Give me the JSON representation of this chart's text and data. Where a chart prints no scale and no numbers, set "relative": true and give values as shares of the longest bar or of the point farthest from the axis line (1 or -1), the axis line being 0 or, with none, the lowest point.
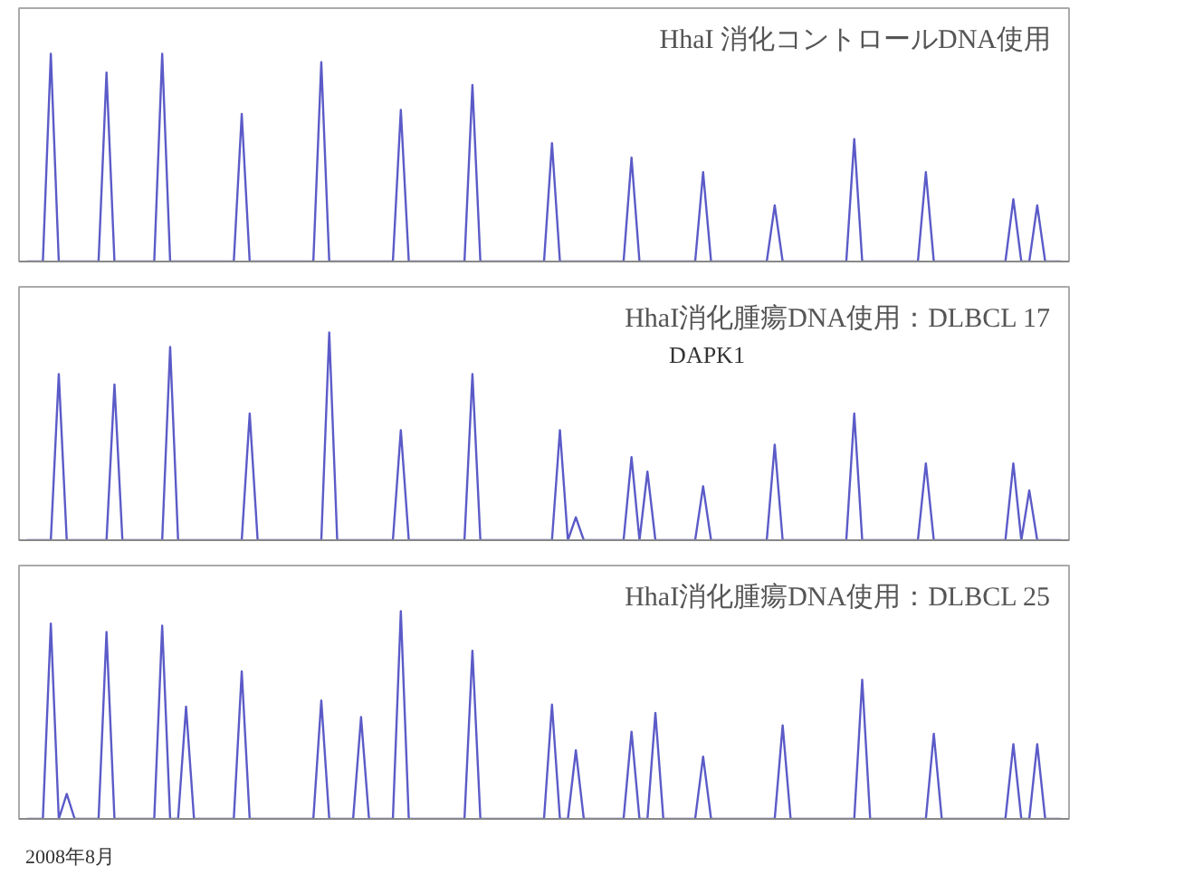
{
  "chart_data": [
    {
      "type": "line",
      "relative": true,
      "title": "HhaI 消化コントロールDNA使用",
      "categories": [
        null,
        null,
        null,
        null,
        null,
        null,
        null,
        null,
        null,
        null,
        null,
        null,
        null,
        null,
        null,
        null,
        null,
        null,
        null,
        null,
        null,
        null,
        null,
        null,
        null,
        null,
        null,
        null,
        null,
        null,
        null,
        null,
        null,
        null,
        null,
        null,
        null,
        null,
        null,
        null,
        null,
        null,
        null,
        null,
        null,
        null,
        null,
        null,
        null,
        null,
        null,
        null,
        null,
        null,
        null,
        null,
        null,
        null,
        null,
        null,
        null,
        null,
        null,
        null,
        null,
        null,
        null,
        null,
        null,
        null,
        null,
        null,
        null,
        null,
        null,
        null,
        null,
        null,
        null,
        null,
        null,
        null,
        null,
        null,
        null,
        null,
        null,
        null,
        null,
        null,
        null,
        null,
        null,
        null,
        null,
        null,
        null,
        null,
        null,
        null,
        null,
        null,
        null,
        null,
        null,
        null,
        null,
        null,
        null,
        null,
        null,
        null,
        null,
        null,
        null,
        null,
        null,
        null,
        null,
        null,
        null,
        null,
        null,
        null,
        null,
        null,
        null,
        null,
        null,
        null,
        null
      ],
      "series": [
        {
          "color": "#5b5bc8",
          "values": [
            0,
            0,
            0,
            1.0,
            0,
            0,
            0,
            0,
            0,
            0,
            0.91,
            0,
            0,
            0,
            0,
            0,
            0,
            1.0,
            0,
            0,
            0,
            0,
            0,
            0,
            0,
            0,
            0,
            0.71,
            0,
            0,
            0,
            0,
            0,
            0,
            0,
            0,
            0,
            0.96,
            0,
            0,
            0,
            0,
            0,
            0,
            0,
            0,
            0,
            0.73,
            0,
            0,
            0,
            0,
            0,
            0,
            0,
            0,
            0.85,
            0,
            0,
            0,
            0,
            0,
            0,
            0,
            0,
            0,
            0.57,
            0,
            0,
            0,
            0,
            0,
            0,
            0,
            0,
            0,
            0.5,
            0,
            0,
            0,
            0,
            0,
            0,
            0,
            0,
            0.43,
            0,
            0,
            0,
            0,
            0,
            0,
            0,
            0,
            0.27,
            0,
            0,
            0,
            0,
            0,
            0,
            0,
            0,
            0,
            0.59,
            0,
            0,
            0,
            0,
            0,
            0,
            0,
            0,
            0.43,
            0,
            0,
            0,
            0,
            0,
            0,
            0,
            0,
            0,
            0,
            0.3,
            0,
            0,
            0.27,
            0,
            0,
            0
          ]
        }
      ]
    },
    {
      "type": "line",
      "relative": true,
      "title": "HhaI消化腫瘍DNA使用：DLBCL 17",
      "annotations": [
        "DAPK1"
      ],
      "categories": [
        null,
        null,
        null,
        null,
        null,
        null,
        null,
        null,
        null,
        null,
        null,
        null,
        null,
        null,
        null,
        null,
        null,
        null,
        null,
        null,
        null,
        null,
        null,
        null,
        null,
        null,
        null,
        null,
        null,
        null,
        null,
        null,
        null,
        null,
        null,
        null,
        null,
        null,
        null,
        null,
        null,
        null,
        null,
        null,
        null,
        null,
        null,
        null,
        null,
        null,
        null,
        null,
        null,
        null,
        null,
        null,
        null,
        null,
        null,
        null,
        null,
        null,
        null,
        null,
        null,
        null,
        null,
        null,
        null,
        null,
        null,
        null,
        null,
        null,
        null,
        null,
        null,
        null,
        null,
        null,
        null,
        null,
        null,
        null,
        null,
        null,
        null,
        null,
        null,
        null,
        null,
        null,
        null,
        null,
        null,
        null,
        null,
        null,
        null,
        null,
        null,
        null,
        null,
        null,
        null,
        null,
        null,
        null,
        null,
        null,
        null,
        null,
        null,
        null,
        null,
        null,
        null,
        null,
        null,
        null,
        null,
        null,
        null,
        null,
        null,
        null,
        null,
        null,
        null,
        null,
        null
      ],
      "series": [
        {
          "color": "#5b5bc8",
          "values": [
            0,
            0,
            0,
            0,
            0.8,
            0,
            0,
            0,
            0,
            0,
            0,
            0.75,
            0,
            0,
            0,
            0,
            0,
            0,
            0.93,
            0,
            0,
            0,
            0,
            0,
            0,
            0,
            0,
            0,
            0.61,
            0,
            0,
            0,
            0,
            0,
            0,
            0,
            0,
            0,
            1.0,
            0,
            0,
            0,
            0,
            0,
            0,
            0,
            0,
            0.53,
            0,
            0,
            0,
            0,
            0,
            0,
            0,
            0,
            0.8,
            0,
            0,
            0,
            0,
            0,
            0,
            0,
            0,
            0,
            0,
            0.53,
            0,
            0.11,
            0,
            0,
            0,
            0,
            0,
            0,
            0.4,
            0,
            0.33,
            0,
            0,
            0,
            0,
            0,
            0,
            0.26,
            0,
            0,
            0,
            0,
            0,
            0,
            0,
            0,
            0.46,
            0,
            0,
            0,
            0,
            0,
            0,
            0,
            0,
            0,
            0.61,
            0,
            0,
            0,
            0,
            0,
            0,
            0,
            0,
            0.37,
            0,
            0,
            0,
            0,
            0,
            0,
            0,
            0,
            0,
            0,
            0.37,
            0,
            0.24,
            0,
            0,
            0,
            0
          ]
        }
      ]
    },
    {
      "type": "line",
      "relative": true,
      "title": "HhaI消化腫瘍DNA使用：DLBCL 25",
      "annotations": [
        "2008年8月"
      ],
      "categories": [
        null,
        null,
        null,
        null,
        null,
        null,
        null,
        null,
        null,
        null,
        null,
        null,
        null,
        null,
        null,
        null,
        null,
        null,
        null,
        null,
        null,
        null,
        null,
        null,
        null,
        null,
        null,
        null,
        null,
        null,
        null,
        null,
        null,
        null,
        null,
        null,
        null,
        null,
        null,
        null,
        null,
        null,
        null,
        null,
        null,
        null,
        null,
        null,
        null,
        null,
        null,
        null,
        null,
        null,
        null,
        null,
        null,
        null,
        null,
        null,
        null,
        null,
        null,
        null,
        null,
        null,
        null,
        null,
        null,
        null,
        null,
        null,
        null,
        null,
        null,
        null,
        null,
        null,
        null,
        null,
        null,
        null,
        null,
        null,
        null,
        null,
        null,
        null,
        null,
        null,
        null,
        null,
        null,
        null,
        null,
        null,
        null,
        null,
        null,
        null,
        null,
        null,
        null,
        null,
        null,
        null,
        null,
        null,
        null,
        null,
        null,
        null,
        null,
        null,
        null,
        null,
        null,
        null,
        null,
        null,
        null,
        null,
        null,
        null,
        null,
        null,
        null,
        null,
        null,
        null,
        null
      ],
      "series": [
        {
          "color": "#5b5bc8",
          "values": [
            0,
            0,
            0,
            0.94,
            0,
            0.12,
            0,
            0,
            0,
            0,
            0.9,
            0,
            0,
            0,
            0,
            0,
            0,
            0.93,
            0,
            0,
            0.54,
            0,
            0,
            0,
            0,
            0,
            0,
            0.71,
            0,
            0,
            0,
            0,
            0,
            0,
            0,
            0,
            0,
            0.57,
            0,
            0,
            0,
            0,
            0.49,
            0,
            0,
            0,
            0,
            1.0,
            0,
            0,
            0,
            0,
            0,
            0,
            0,
            0,
            0.81,
            0,
            0,
            0,
            0,
            0,
            0,
            0,
            0,
            0,
            0.55,
            0,
            0,
            0.33,
            0,
            0,
            0,
            0,
            0,
            0,
            0.42,
            0,
            0,
            0.51,
            0,
            0,
            0,
            0,
            0,
            0.3,
            0,
            0,
            0,
            0,
            0,
            0,
            0,
            0,
            0,
            0.45,
            0,
            0,
            0,
            0,
            0,
            0,
            0,
            0,
            0,
            0.67,
            0,
            0,
            0,
            0,
            0,
            0,
            0,
            0,
            0.41,
            0,
            0,
            0,
            0,
            0,
            0,
            0,
            0,
            0,
            0.36,
            0,
            0,
            0.36,
            0,
            0,
            0
          ]
        }
      ]
    }
  ]
}
